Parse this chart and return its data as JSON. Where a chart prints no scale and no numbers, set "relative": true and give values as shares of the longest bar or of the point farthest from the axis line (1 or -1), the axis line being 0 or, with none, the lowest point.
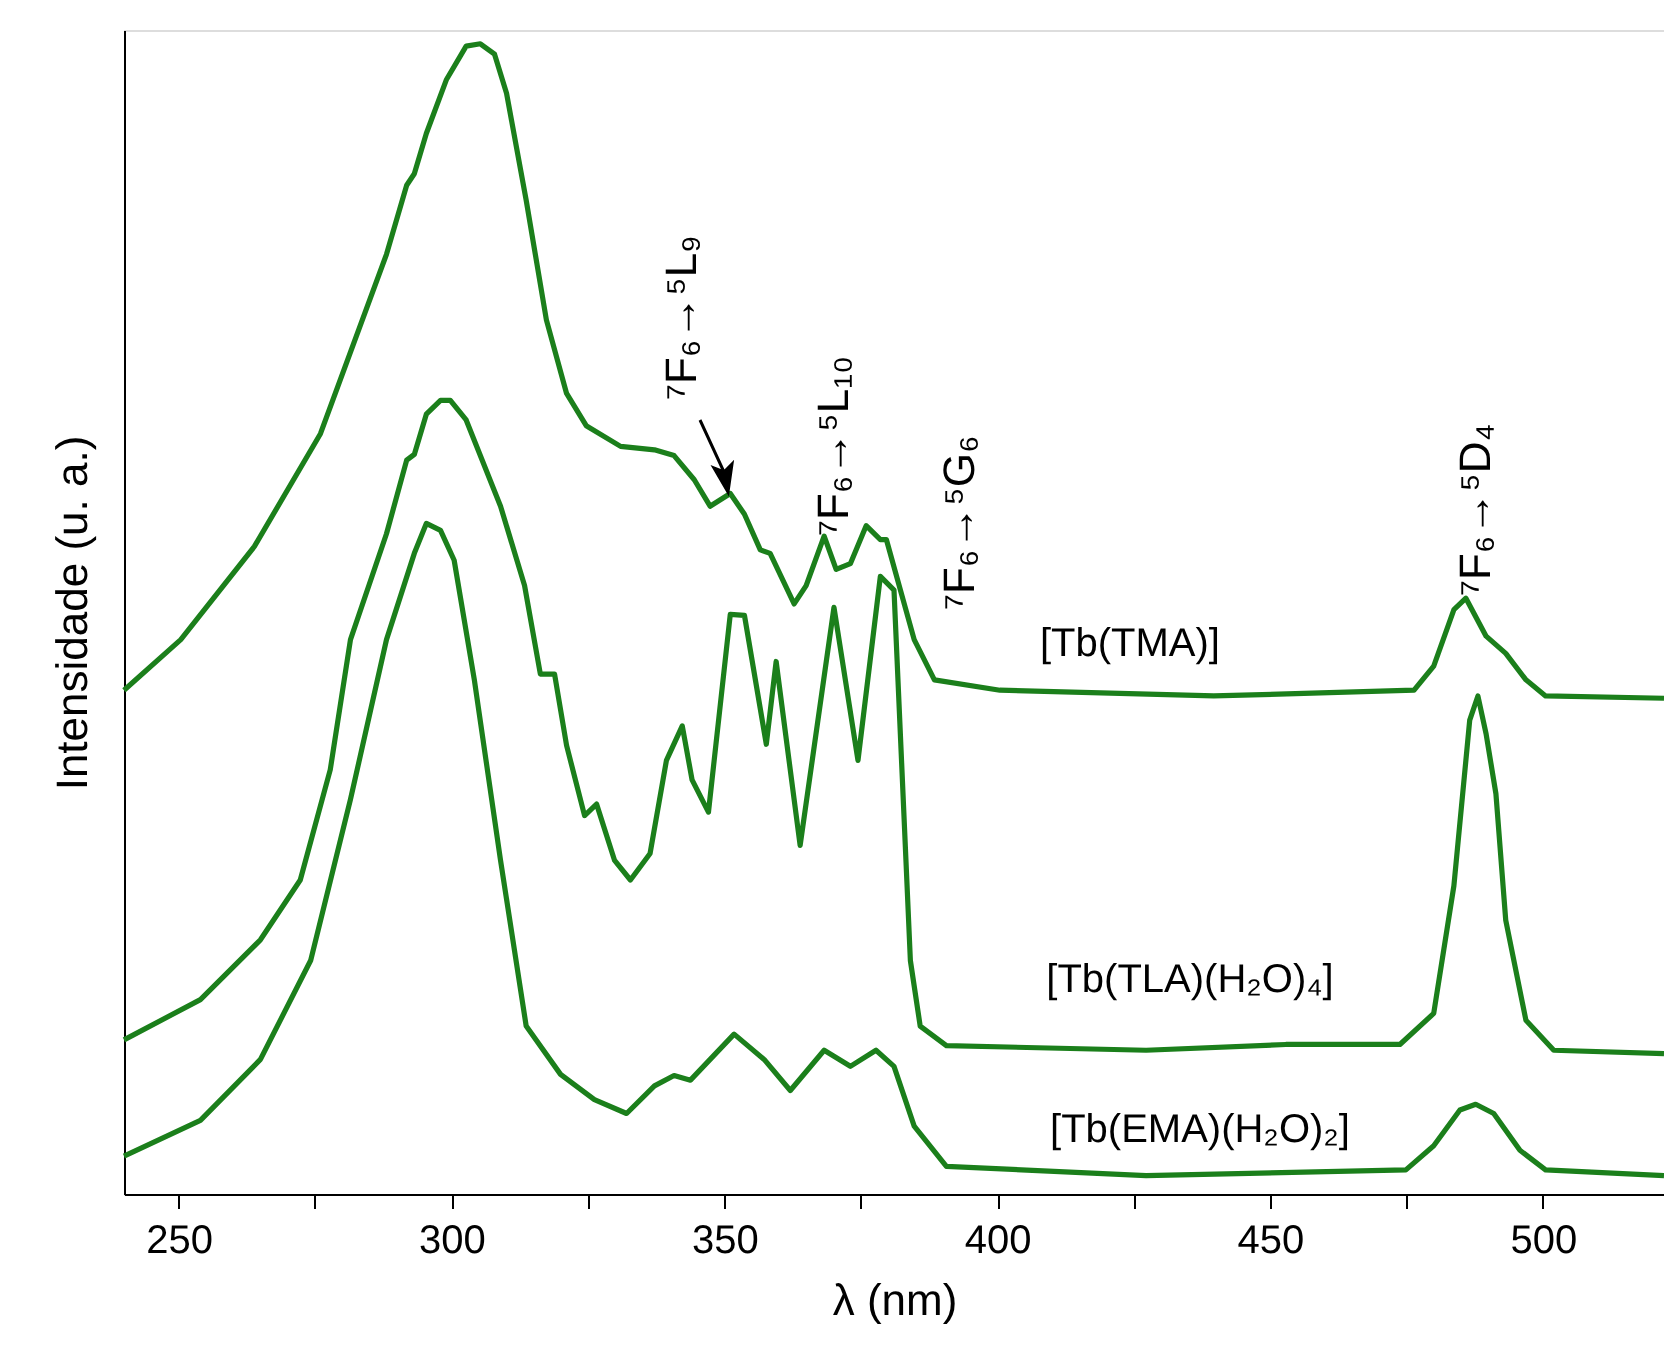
{
  "chart_data": {
    "type": "line",
    "relative": true,
    "xlabel": "λ (nm)",
    "ylabel": "Intensidade (u. a.)",
    "xlim": [
      240,
      522.2
    ],
    "xticks": [
      250,
      {
        "value": 275,
        "label": null
      },
      300,
      {
        "value": 325,
        "label": null
      },
      350,
      {
        "value": 375,
        "label": null
      },
      400,
      {
        "value": 425,
        "label": null
      },
      450,
      {
        "value": 475,
        "label": null
      },
      500
    ],
    "grid": false,
    "legend": false,
    "marker": "none",
    "line_style": "solid",
    "series": [
      {
        "name": "[Tb(TMA)]",
        "color": "#1b7f1b",
        "x": [
          240,
          250.4,
          263.9,
          276.0,
          288.1,
          291.8,
          293.2,
          295.4,
          299.1,
          302.7,
          305.3,
          307.9,
          310.1,
          313.7,
          317.4,
          321.1,
          324.7,
          331.0,
          337.2,
          340.8,
          344.5,
          347.4,
          351.1,
          353.7,
          356.6,
          358.4,
          362.8,
          365.0,
          368.3,
          370.5,
          373.1,
          376.0,
          378.6,
          379.7,
          384.8,
          388.5,
          400.5,
          439.7,
          476.4,
          480.0,
          483.7,
          485.9,
          489.6,
          493.2,
          496.9,
          500.5,
          522.2
        ],
        "values": [
          0.438,
          0.482,
          0.563,
          0.661,
          0.817,
          0.877,
          0.887,
          0.922,
          0.969,
          0.998,
          1.0,
          0.991,
          0.957,
          0.864,
          0.76,
          0.696,
          0.668,
          0.65,
          0.647,
          0.642,
          0.621,
          0.598,
          0.609,
          0.591,
          0.56,
          0.557,
          0.513,
          0.529,
          0.572,
          0.543,
          0.548,
          0.581,
          0.569,
          0.569,
          0.482,
          0.447,
          0.438,
          0.433,
          0.438,
          0.459,
          0.508,
          0.518,
          0.485,
          0.47,
          0.447,
          0.433,
          0.431
        ]
      },
      {
        "name": "[Tb(TLA)(H₂O)₄]",
        "color": "#1b7f1b",
        "x": [
          240,
          254.0,
          265.0,
          272.3,
          277.8,
          281.5,
          288.1,
          291.8,
          293.2,
          295.4,
          298.0,
          299.8,
          302.7,
          309.0,
          313.4,
          316.3,
          318.9,
          321.1,
          324.4,
          326.6,
          329.9,
          332.8,
          336.4,
          339.4,
          342.3,
          344.1,
          347.1,
          351.1,
          353.7,
          357.7,
          359.5,
          363.9,
          370.1,
          374.5,
          378.6,
          381.1,
          384.1,
          385.9,
          390.7,
          427.3,
          452.9,
          473.8,
          480.0,
          483.7,
          486.6,
          488.1,
          489.6,
          491.4,
          493.2,
          496.9,
          502.0,
          522.2
        ],
        "values": [
          0.134,
          0.169,
          0.221,
          0.273,
          0.369,
          0.482,
          0.574,
          0.638,
          0.643,
          0.678,
          0.69,
          0.69,
          0.673,
          0.598,
          0.529,
          0.452,
          0.452,
          0.39,
          0.329,
          0.339,
          0.29,
          0.273,
          0.296,
          0.377,
          0.407,
          0.36,
          0.332,
          0.504,
          0.503,
          0.391,
          0.463,
          0.303,
          0.51,
          0.377,
          0.537,
          0.525,
          0.203,
          0.146,
          0.129,
          0.125,
          0.13,
          0.13,
          0.157,
          0.268,
          0.412,
          0.433,
          0.4,
          0.348,
          0.238,
          0.151,
          0.125,
          0.122
        ]
      },
      {
        "name": "[Tb(EMA)(H₂O)₂]",
        "color": "#1b7f1b",
        "x": [
          240,
          254.0,
          265.0,
          274.2,
          281.5,
          288.1,
          293.2,
          295.4,
          298.0,
          300.5,
          304.2,
          309.0,
          313.7,
          320.0,
          326.2,
          332.1,
          337.2,
          340.8,
          343.8,
          351.8,
          357.3,
          362.1,
          368.3,
          373.1,
          377.8,
          381.1,
          384.8,
          390.7,
          427.3,
          474.9,
          480.0,
          484.8,
          487.7,
          491.0,
          495.8,
          500.5,
          522.2
        ],
        "values": [
          0.033,
          0.064,
          0.117,
          0.203,
          0.343,
          0.482,
          0.557,
          0.583,
          0.577,
          0.551,
          0.447,
          0.29,
          0.146,
          0.104,
          0.082,
          0.07,
          0.094,
          0.103,
          0.099,
          0.139,
          0.117,
          0.09,
          0.125,
          0.111,
          0.125,
          0.111,
          0.059,
          0.024,
          0.016,
          0.021,
          0.042,
          0.073,
          0.078,
          0.07,
          0.038,
          0.021,
          0.016
        ]
      }
    ],
    "annotations": [
      "⁷F₆→⁵L₉",
      "⁷F₆→⁵L₁₀",
      "⁷F₆→⁵G₆",
      "⁷F₆→⁵D₄"
    ]
  }
}
